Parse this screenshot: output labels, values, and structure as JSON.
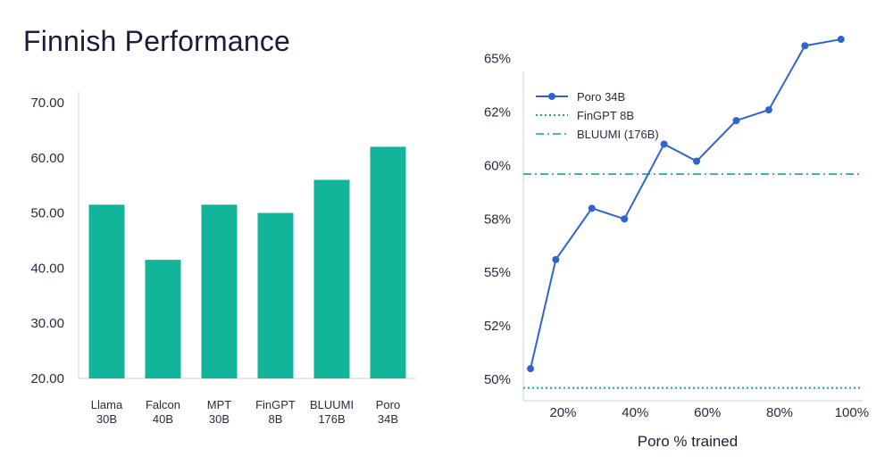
{
  "page": {
    "title": "Finnish Performance"
  },
  "colors": {
    "bar": "#12b59a",
    "line": "#2f63d1",
    "fingpt": "#12a88f",
    "bluumi": "#12a88f",
    "axis": "#555555",
    "text": "#1f1f3a"
  },
  "chart_data": [
    {
      "type": "bar",
      "title": "",
      "categories": [
        [
          "Llama",
          "30B"
        ],
        [
          "Falcon",
          "40B"
        ],
        [
          "MPT",
          "30B"
        ],
        [
          "FinGPT",
          "8B"
        ],
        [
          "BLUUMI",
          "176B"
        ],
        [
          "Poro",
          "34B"
        ]
      ],
      "values": [
        51.5,
        41.5,
        51.5,
        50.0,
        56.0,
        62.0
      ],
      "ylim": [
        20,
        70
      ],
      "yticks": [
        20,
        30,
        40,
        50,
        60,
        70
      ],
      "ytick_labels": [
        "20.00",
        "30.00",
        "40.00",
        "50.00",
        "60.00",
        "70.00"
      ],
      "xlabel": "",
      "ylabel": "",
      "grid": false
    },
    {
      "type": "line",
      "xlabel": "Poro % trained",
      "ylabel": "",
      "xlim": [
        9,
        103
      ],
      "ylim": [
        49,
        64.4
      ],
      "xticks": [
        20,
        40,
        60,
        80,
        100
      ],
      "xtick_labels": [
        "20%",
        "40%",
        "60%",
        "80%",
        "100%"
      ],
      "yticks": [
        50,
        52.5,
        55,
        57.5,
        60,
        62.5
      ],
      "ytick_labels": [
        "50%",
        "52%",
        "55%",
        "58%",
        "60%",
        "62%",
        "65%"
      ],
      "yticks_full": [
        50,
        52.5,
        55,
        57.5,
        60,
        62.5,
        65
      ],
      "series": [
        {
          "name": "Poro 34B",
          "style": "solid-marker",
          "x": [
            11,
            18,
            28,
            37,
            48,
            57,
            68,
            77,
            87,
            97
          ],
          "y": [
            50.5,
            55.6,
            58.0,
            57.5,
            61.0,
            60.2,
            62.1,
            62.6,
            65.6,
            65.9
          ]
        },
        {
          "name": "FinGPT 8B",
          "style": "dotted",
          "y": 49.6
        },
        {
          "name": "BLUUMI (176B)",
          "style": "dashdot",
          "y": 59.6
        }
      ],
      "legend_position": "top-left",
      "grid": false
    }
  ]
}
